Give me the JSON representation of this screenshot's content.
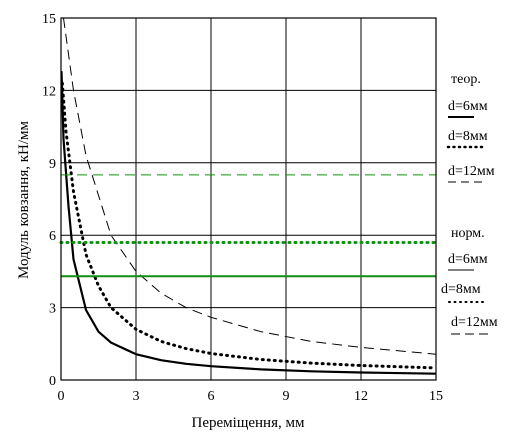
{
  "chart_data": {
    "type": "line",
    "xlabel": "Переміщення, мм",
    "ylabel": "Модуль ковзання, кН/мм",
    "xlim": [
      0,
      15
    ],
    "ylim": [
      0,
      15
    ],
    "xticks": [
      "0",
      "3",
      "6",
      "9",
      "12",
      "15"
    ],
    "yticks": [
      "0",
      "3",
      "6",
      "9",
      "12",
      "15"
    ],
    "grid": true,
    "legend_position": "right",
    "legend": {
      "theory_heading": "теор.",
      "norm_heading": "норм.",
      "theory_items": [
        "d=6мм",
        "d=8мм",
        "d=12мм"
      ],
      "norm_items": [
        "d=6мм",
        "d=8мм",
        "d=12мм"
      ]
    },
    "series": [
      {
        "group": "theory",
        "d_mm": 6,
        "style": "solid",
        "color": "#000000",
        "points": [
          [
            0.02,
            12.8
          ],
          [
            0.1,
            10.0
          ],
          [
            0.3,
            7.2
          ],
          [
            0.5,
            5.0
          ],
          [
            1,
            2.9
          ],
          [
            1.5,
            2.0
          ],
          [
            2,
            1.55
          ],
          [
            3,
            1.07
          ],
          [
            4,
            0.82
          ],
          [
            5,
            0.67
          ],
          [
            6,
            0.57
          ],
          [
            8,
            0.44
          ],
          [
            10,
            0.36
          ],
          [
            12,
            0.31
          ],
          [
            15,
            0.26
          ]
        ]
      },
      {
        "group": "theory",
        "d_mm": 8,
        "style": "dotted",
        "color": "#000000",
        "points": [
          [
            0.05,
            12.3
          ],
          [
            0.2,
            10.3
          ],
          [
            0.5,
            7.8
          ],
          [
            1,
            5.2
          ],
          [
            1.5,
            3.9
          ],
          [
            2,
            3.0
          ],
          [
            3,
            2.1
          ],
          [
            4,
            1.6
          ],
          [
            5,
            1.3
          ],
          [
            6,
            1.1
          ],
          [
            8,
            0.85
          ],
          [
            10,
            0.7
          ],
          [
            12,
            0.6
          ],
          [
            15,
            0.5
          ]
        ]
      },
      {
        "group": "theory",
        "d_mm": 12,
        "style": "dashed",
        "color": "#000000",
        "points": [
          [
            0.1,
            15.0
          ],
          [
            0.5,
            12.0
          ],
          [
            1,
            9.3
          ],
          [
            2,
            6.0
          ],
          [
            3,
            4.5
          ],
          [
            4,
            3.6
          ],
          [
            5,
            3.0
          ],
          [
            6,
            2.6
          ],
          [
            8,
            2.0
          ],
          [
            10,
            1.6
          ],
          [
            12,
            1.35
          ],
          [
            15,
            1.07
          ]
        ]
      },
      {
        "group": "norm",
        "d_mm": 6,
        "style": "solid",
        "color": "#109010",
        "value": 4.3
      },
      {
        "group": "norm",
        "d_mm": 8,
        "style": "dotted",
        "color": "#109010",
        "value": 5.7
      },
      {
        "group": "norm",
        "d_mm": 12,
        "style": "dashed",
        "color": "#109010",
        "value": 8.5
      }
    ]
  }
}
